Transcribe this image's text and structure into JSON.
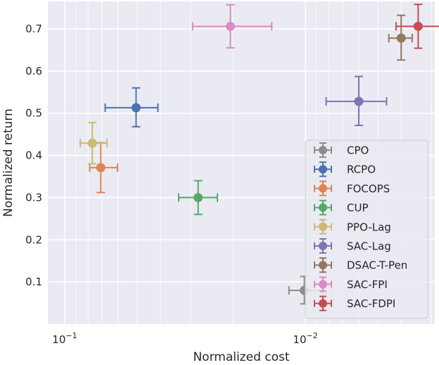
{
  "chart_data": {
    "type": "scatter",
    "xlabel": "Normalized cost",
    "ylabel": "Normalized return",
    "x_scale": "log",
    "x_direction": "decreasing",
    "x_ticks": [
      {
        "value": 0.1,
        "base": "10",
        "exp": "−1"
      },
      {
        "value": 0.01,
        "base": "10",
        "exp": "−2"
      }
    ],
    "y_ticks": [
      "0.1",
      "0.2",
      "0.3",
      "0.4",
      "0.5",
      "0.6",
      "0.7"
    ],
    "y_tick_values": [
      0.1,
      0.2,
      0.3,
      0.4,
      0.5,
      0.6,
      0.7
    ],
    "xlim": [
      0.1175,
      0.0029
    ],
    "ylim": [
      0.0,
      0.765
    ],
    "grid": true,
    "legend_position": "lower-right",
    "background": "#eaeaf2",
    "series": [
      {
        "name": "CPO",
        "color": "#8c8c8c",
        "x": 0.0101,
        "y": 0.08,
        "xerr": [
          0.0117,
          0.0085
        ],
        "yerr": [
          0.048,
          0.113
        ]
      },
      {
        "name": "RCPO",
        "color": "#4c72b0",
        "x": 0.0505,
        "y": 0.513,
        "xerr": [
          0.0679,
          0.041
        ],
        "yerr": [
          0.468,
          0.56
        ]
      },
      {
        "name": "FOCOPS",
        "color": "#dd8452",
        "x": 0.0708,
        "y": 0.371,
        "xerr": [
          0.0787,
          0.0603
        ],
        "yerr": [
          0.312,
          0.43
        ]
      },
      {
        "name": "CUP",
        "color": "#55a868",
        "x": 0.0279,
        "y": 0.3,
        "xerr": [
          0.0336,
          0.0232
        ],
        "yerr": [
          0.26,
          0.34
        ]
      },
      {
        "name": "PPO-Lag",
        "color": "#ccb974",
        "x": 0.0768,
        "y": 0.429,
        "xerr": [
          0.0861,
          0.0667
        ],
        "yerr": [
          0.38,
          0.478
        ]
      },
      {
        "name": "SAC-Lag",
        "color": "#8172b3",
        "x": 0.006,
        "y": 0.528,
        "xerr": [
          0.0082,
          0.0046
        ],
        "yerr": [
          0.471,
          0.587
        ]
      },
      {
        "name": "DSAC-T-Pen",
        "color": "#937860",
        "x": 0.004,
        "y": 0.678,
        "xerr": [
          0.0045,
          0.0036
        ],
        "yerr": [
          0.626,
          0.732
        ]
      },
      {
        "name": "SAC-FPI",
        "color": "#da8bc3",
        "x": 0.0205,
        "y": 0.706,
        "xerr": [
          0.0294,
          0.0138
        ],
        "yerr": [
          0.655,
          0.757
        ]
      },
      {
        "name": "SAC-FDPI",
        "color": "#c44e52",
        "x": 0.0034,
        "y": 0.706,
        "xerr": [
          0.0042,
          0.0027
        ],
        "yerr": [
          0.654,
          0.758
        ]
      }
    ]
  }
}
